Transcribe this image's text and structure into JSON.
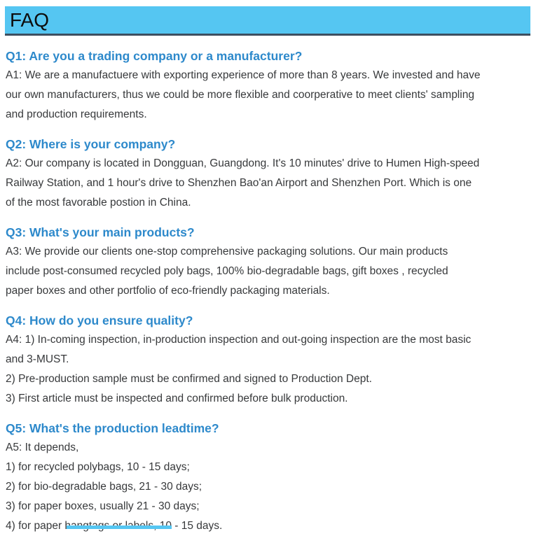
{
  "header": {
    "title": "FAQ"
  },
  "colors": {
    "page_bg": "#ffffff",
    "header_bg": "#55c6f2",
    "header_border": "#3d4f60",
    "header_text": "#0d0d0d",
    "question": "#2d89cb",
    "answer": "#37393b"
  },
  "faq": {
    "items": [
      {
        "question": "Q1: Are you a trading company or a manufacturer?",
        "answer_lines": [
          "A1: We are a manufactuere with exporting experience of more than 8 years. We invested and have",
          "our own manufacturers, thus we could be more flexible and coorperative to meet clients' sampling",
          "and production requirements."
        ]
      },
      {
        "question": "Q2: Where is your company?",
        "answer_lines": [
          "A2: Our company is located in Dongguan, Guangdong. It's 10 minutes' drive to Humen High-speed",
          "Railway Station, and 1 hour's drive to Shenzhen Bao'an Airport and Shenzhen Port. Which is one",
          "of the most favorable postion in China."
        ]
      },
      {
        "question": "Q3: What's your main products?",
        "answer_lines": [
          "A3: We provide our clients one-stop comprehensive packaging solutions. Our main products",
          "include post-consumed recycled poly bags, 100% bio-degradable bags, gift boxes , recycled",
          "paper boxes and other portfolio of eco-friendly packaging materials."
        ]
      },
      {
        "question": "Q4: How do you ensure quality?",
        "answer_lines": [
          "A4: 1) In-coming inspection, in-production inspection and out-going inspection are the most basic",
          "and 3-MUST.",
          "2) Pre-production sample must be confirmed and signed to Production Dept.",
          "3) First article must be inspected and confirmed before bulk production."
        ]
      },
      {
        "question": "Q5: What's the production leadtime?",
        "answer_lines": [
          "A5: It depends,",
          "1) for recycled polybags, 10 - 15 days;",
          "2) for bio-degradable bags, 21 - 30 days;",
          "3) for paper boxes, usually 21 - 30 days;",
          "4) for paper hangtags or labels, 10 - 15 days."
        ]
      }
    ]
  }
}
